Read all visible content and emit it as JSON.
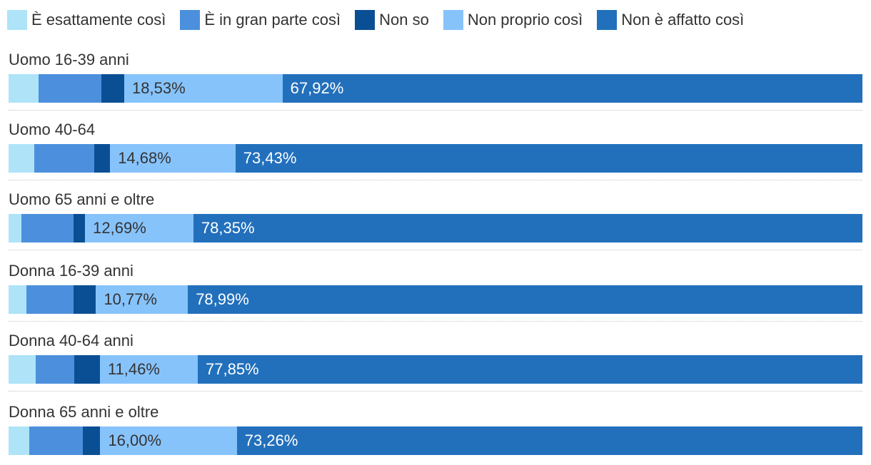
{
  "chart_data": {
    "type": "bar",
    "orientation": "horizontal",
    "stacked": true,
    "normalized": true,
    "categories": [
      "Uomo 16-39 anni",
      "Uomo 40-64",
      "Uomo 65 anni e oltre",
      "Donna 16-39 anni",
      "Donna 40-64 anni",
      "Donna 65 anni e oltre"
    ],
    "series": [
      {
        "name": "È esattamente così",
        "color": "#aee3f8",
        "text_color": "#333333",
        "show_labels": false,
        "values": [
          3.5,
          3.0,
          1.5,
          2.1,
          3.2,
          2.4
        ]
      },
      {
        "name": "È in gran parte così",
        "color": "#4c90dd",
        "text_color": "#ffffff",
        "show_labels": false,
        "values": [
          7.4,
          7.0,
          6.1,
          5.5,
          4.5,
          6.3
        ]
      },
      {
        "name": "Non so",
        "color": "#0a4f94",
        "text_color": "#ffffff",
        "show_labels": false,
        "values": [
          2.65,
          1.89,
          1.36,
          2.63,
          3.0,
          2.04
        ]
      },
      {
        "name": "Non proprio così",
        "color": "#87c3fb",
        "text_color": "#333333",
        "show_labels": true,
        "values": [
          18.53,
          14.68,
          12.69,
          10.77,
          11.46,
          16.0
        ],
        "labels": [
          "18,53%",
          "14,68%",
          "12,69%",
          "10,77%",
          "11,46%",
          "16,00%"
        ]
      },
      {
        "name": "Non è affatto così",
        "color": "#2270bc",
        "text_color": "#ffffff",
        "show_labels": true,
        "values": [
          67.92,
          73.43,
          78.35,
          78.99,
          77.85,
          73.26
        ],
        "labels": [
          "67,92%",
          "73,43%",
          "78,35%",
          "78,99%",
          "77,85%",
          "73,26%"
        ]
      }
    ],
    "title": "",
    "xlabel": "",
    "ylabel": "",
    "xlim": [
      0,
      100
    ],
    "grid": false,
    "legend": "top"
  }
}
